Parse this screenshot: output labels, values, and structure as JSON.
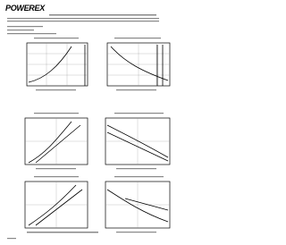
{
  "header": {
    "logo": "POWEREX"
  }
}
